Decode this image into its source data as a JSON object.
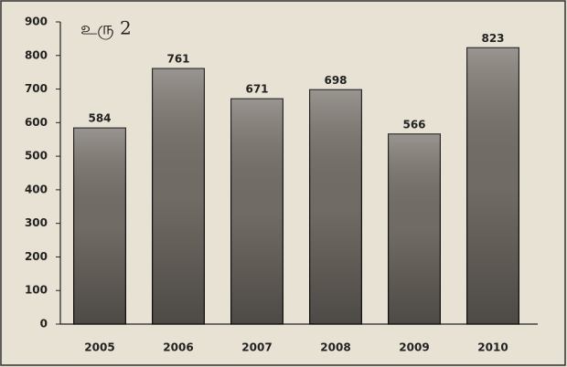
{
  "chart_data": {
    "type": "bar",
    "title": "உரு 2",
    "categories": [
      "2005",
      "2006",
      "2007",
      "2008",
      "2009",
      "2010"
    ],
    "values": [
      584,
      761,
      671,
      698,
      566,
      823
    ],
    "color": "#77716a",
    "ylim": [
      0,
      900
    ],
    "yticks": [
      0,
      100,
      200,
      300,
      400,
      500,
      600,
      700,
      800,
      900
    ],
    "grid": false
  }
}
